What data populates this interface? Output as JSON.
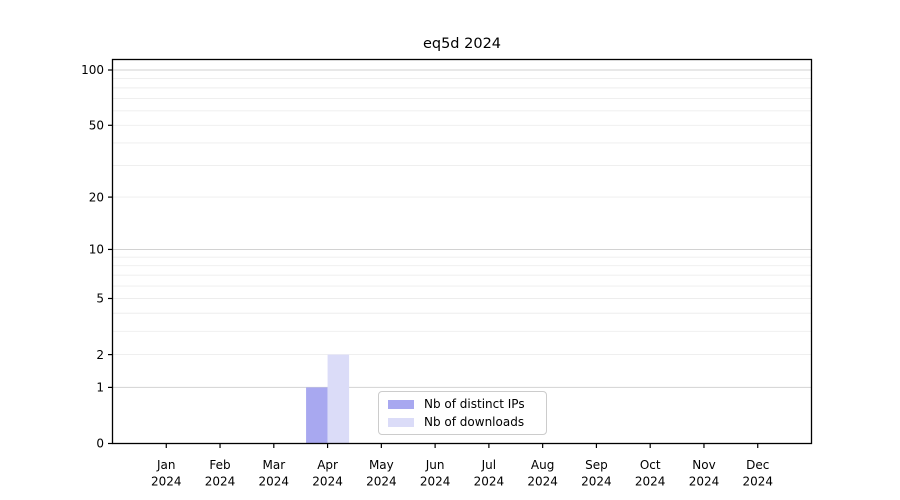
{
  "chart_data": {
    "type": "bar",
    "title": "eq5d 2024",
    "x_tick_labels": [
      {
        "month": "Jan",
        "year": "2024"
      },
      {
        "month": "Feb",
        "year": "2024"
      },
      {
        "month": "Mar",
        "year": "2024"
      },
      {
        "month": "Apr",
        "year": "2024"
      },
      {
        "month": "May",
        "year": "2024"
      },
      {
        "month": "Jun",
        "year": "2024"
      },
      {
        "month": "Jul",
        "year": "2024"
      },
      {
        "month": "Aug",
        "year": "2024"
      },
      {
        "month": "Sep",
        "year": "2024"
      },
      {
        "month": "Oct",
        "year": "2024"
      },
      {
        "month": "Nov",
        "year": "2024"
      },
      {
        "month": "Dec",
        "year": "2024"
      }
    ],
    "series": [
      {
        "name": "Nb of distinct IPs",
        "color": "#a8a8f0",
        "values": [
          0,
          0,
          0,
          1,
          0,
          0,
          0,
          0,
          0,
          0,
          0,
          0
        ]
      },
      {
        "name": "Nb of downloads",
        "color": "#dbdcf8",
        "values": [
          0,
          0,
          0,
          2,
          0,
          0,
          0,
          0,
          0,
          0,
          0,
          0
        ]
      }
    ],
    "yscale": "log10(value+1)",
    "yticks": [
      0,
      1,
      2,
      5,
      10,
      20,
      50,
      100
    ],
    "ylim": [
      0,
      114
    ],
    "grid_major": [
      1,
      10,
      100
    ],
    "grid_minor": [
      2,
      3,
      4,
      5,
      6,
      7,
      8,
      9,
      20,
      30,
      40,
      50,
      60,
      70,
      80,
      90
    ],
    "colors": {
      "axis": "#000000",
      "major_grid": "#d2d2d2",
      "minor_grid": "#ededed",
      "bar_distinct_ips": "#a8a8f0",
      "bar_downloads": "#dbdcf8"
    },
    "legend_position": "inside-bottom-center"
  }
}
